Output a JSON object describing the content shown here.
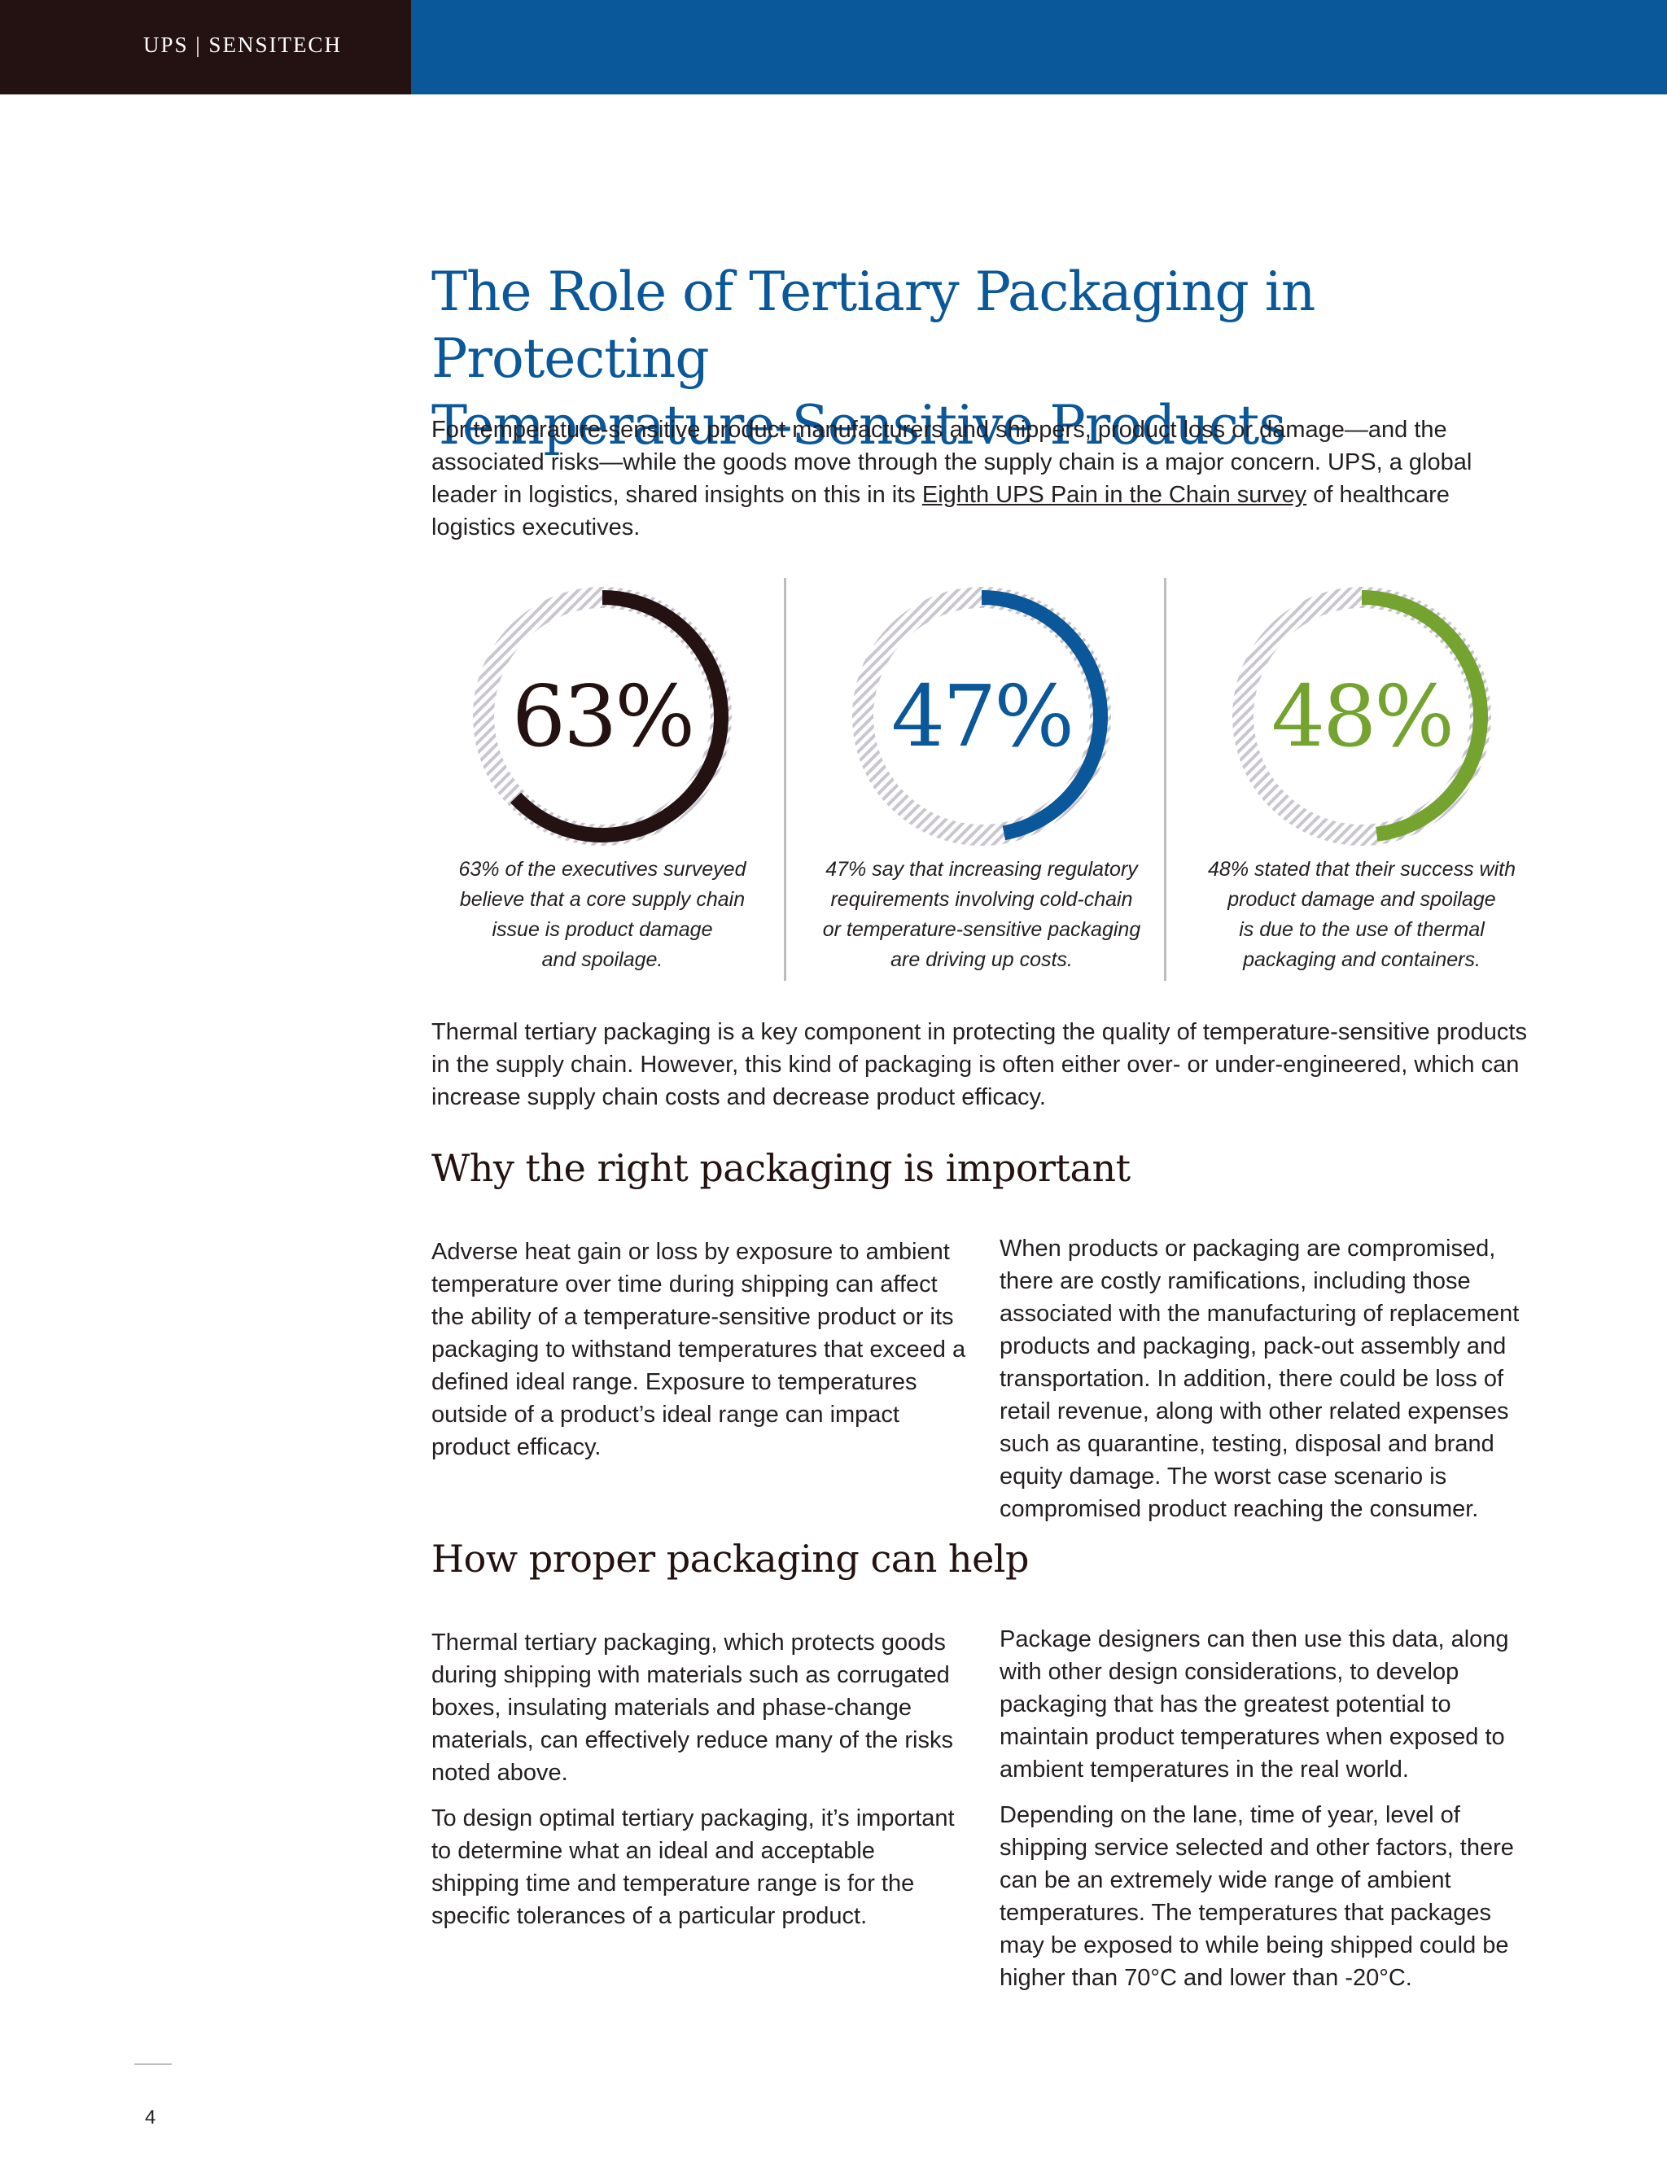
{
  "header": {
    "brand": "UPS | SENSITECH"
  },
  "title": {
    "line1": "The Role of Tertiary Packaging in Protecting",
    "line2": "Temperature-Sensitive Products"
  },
  "intro": {
    "before_link": "For temperature-sensitive product manufacturers and shippers, product loss or damage—and the associated risks—while the goods move through the supply chain is a major concern. UPS, a global leader in logistics, shared insights on this in its ",
    "link_text": "Eighth UPS Pain in the Chain survey",
    "after_link": " of healthcare logistics executives."
  },
  "stats": [
    {
      "value": "63%",
      "fraction": 0.63,
      "color": "#241212",
      "caption_lines": [
        "63% of the executives surveyed",
        "believe that a core supply chain",
        "issue is product damage",
        "and spoilage."
      ]
    },
    {
      "value": "47%",
      "fraction": 0.47,
      "color": "#0a5799",
      "caption_lines": [
        "47% say that increasing regulatory",
        "requirements involving cold-chain",
        "or temperature-sensitive packaging",
        "are driving up costs."
      ]
    },
    {
      "value": "48%",
      "fraction": 0.48,
      "color": "#74a330",
      "caption_lines": [
        "48% stated that their success with",
        "product damage and spoilage",
        "is due to the use of thermal",
        "packaging and containers."
      ]
    }
  ],
  "para2": "Thermal tertiary packaging is a key component in protecting the quality of temperature-sensitive products in the supply chain. However, this kind of packaging is often either over- or under-engineered, which can increase supply chain costs and decrease product efficacy.",
  "section1": {
    "heading": "Why the right packaging is important",
    "left": "Adverse heat gain or loss by exposure to ambient temperature over time during shipping can affect the ability of a temperature-sensitive product or its packaging to withstand temperatures that exceed a defined ideal range. Exposure to temperatures outside of a product’s ideal range can impact product efficacy.",
    "right": "When products or packaging are compromised, there are costly ramifications, including those associated with the manufacturing of replacement products and packaging, pack-out assembly and transportation. In addition, there could be loss of retail revenue, along with other related expenses such as quarantine, testing, disposal and brand equity damage. The worst case scenario is compromised product reaching the consumer."
  },
  "section2": {
    "heading": "How proper packaging can help",
    "left_p1": "Thermal tertiary packaging, which protects goods during shipping with materials such as corrugated boxes, insulating materials and phase-change materials, can effectively reduce many of the risks noted above.",
    "left_p2": "To design optimal tertiary packaging, it’s important to determine what an ideal and acceptable shipping time and temperature range is for the specific tolerances of a particular product.",
    "right_p1": "Package designers can then use this data, along with other design considerations, to develop packaging that has the greatest potential to maintain product temperatures when exposed to ambient temperatures in the real world.",
    "right_p2": "Depending on the lane, time of year, level of shipping service selected and other factors, there can be an extremely wide range of ambient temperatures. The temperatures that packages may be exposed to while being shipped could be higher than 70°C and lower than -20°C."
  },
  "footer": {
    "page_number": "4"
  }
}
